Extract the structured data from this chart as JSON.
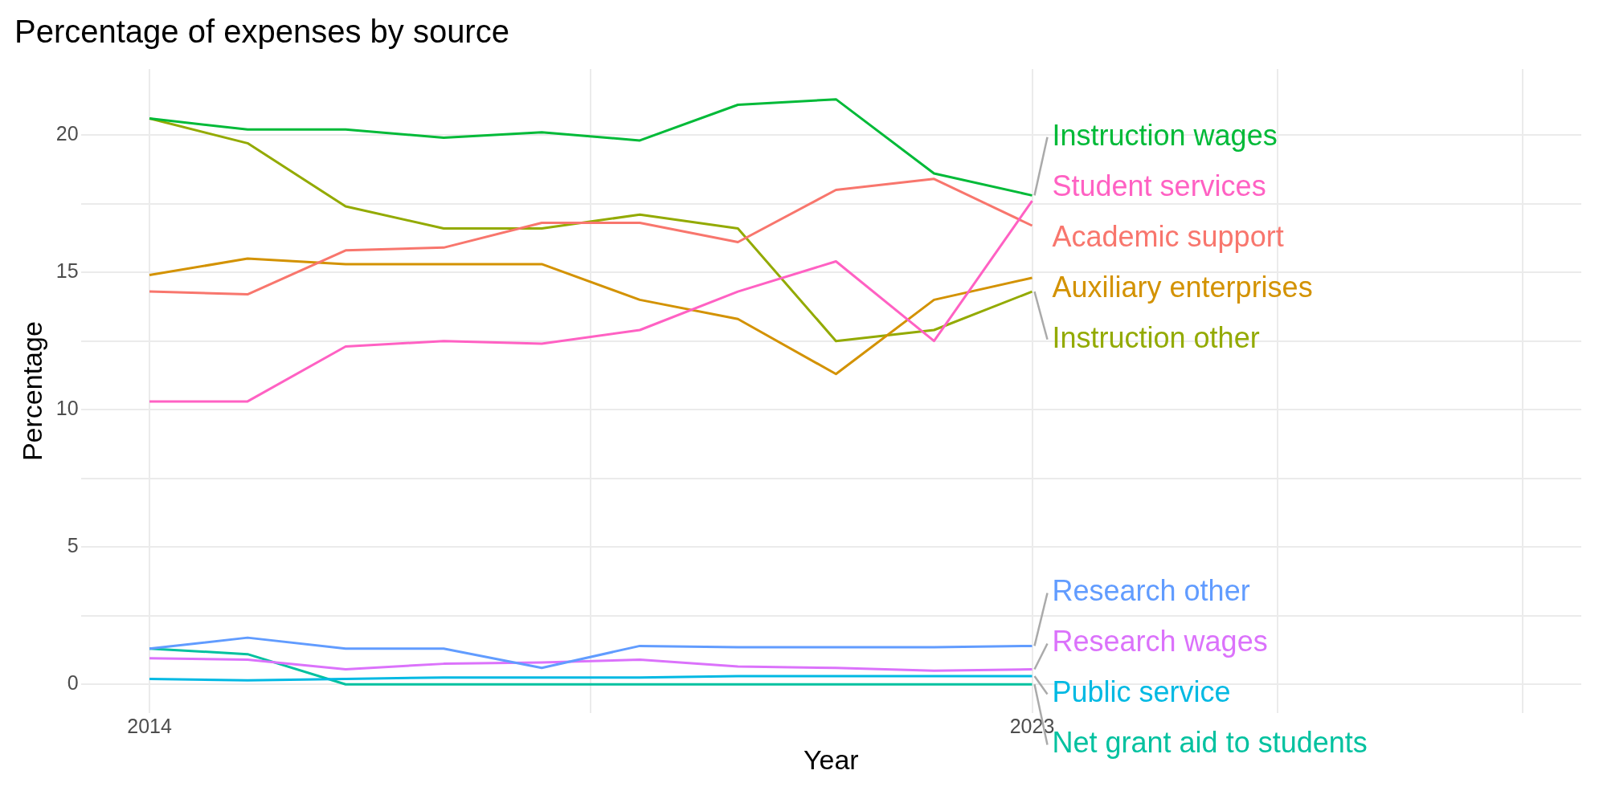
{
  "chart_data": {
    "type": "line",
    "title": "Percentage of expenses by source",
    "xlabel": "Year",
    "ylabel": "Percentage",
    "x": [
      2014,
      2015,
      2016,
      2017,
      2018,
      2019,
      2020,
      2021,
      2022,
      2023
    ],
    "xlim": [
      2013.3,
      2028.6
    ],
    "xticks": [
      2014,
      {
        "value": 2018.5,
        "label": null
      },
      2023,
      {
        "value": 2025.5,
        "label": null
      },
      {
        "value": 2028,
        "label": null
      }
    ],
    "ylim": [
      -1.05,
      22.4
    ],
    "yticks": [
      0,
      {
        "value": 2.5,
        "label": null
      },
      5,
      {
        "value": 7.5,
        "label": null
      },
      10,
      {
        "value": 12.5,
        "label": null
      },
      15,
      {
        "value": 17.5,
        "label": null
      },
      20
    ],
    "grid": true,
    "legend": false,
    "series": [
      {
        "name": "Instruction wages",
        "color": "#00ba38",
        "values": [
          20.6,
          20.2,
          20.2,
          19.9,
          20.1,
          19.8,
          21.1,
          21.3,
          18.6,
          17.8
        ]
      },
      {
        "name": "Student services",
        "color": "#ff61c3",
        "values": [
          10.3,
          10.3,
          12.3,
          12.5,
          12.4,
          12.9,
          14.3,
          15.4,
          12.5,
          17.6
        ]
      },
      {
        "name": "Academic support",
        "color": "#f8766d",
        "values": [
          14.3,
          14.2,
          15.8,
          15.9,
          16.8,
          16.8,
          16.1,
          18.0,
          18.4,
          16.7
        ]
      },
      {
        "name": "Auxiliary enterprises",
        "color": "#d39200",
        "values": [
          14.9,
          15.5,
          15.3,
          15.3,
          15.3,
          14.0,
          13.3,
          11.3,
          14.0,
          14.8
        ]
      },
      {
        "name": "Instruction other",
        "color": "#93aa00",
        "values": [
          20.6,
          19.7,
          17.4,
          16.6,
          16.6,
          17.1,
          16.6,
          12.5,
          12.9,
          14.3
        ]
      },
      {
        "name": "Research other",
        "color": "#619cff",
        "values": [
          1.3,
          1.7,
          1.3,
          1.3,
          0.6,
          1.4,
          1.35,
          1.35,
          1.35,
          1.4
        ]
      },
      {
        "name": "Research wages",
        "color": "#db72fb",
        "values": [
          0.95,
          0.9,
          0.55,
          0.75,
          0.8,
          0.9,
          0.65,
          0.6,
          0.5,
          0.55
        ]
      },
      {
        "name": "Public service",
        "color": "#00b9e3",
        "values": [
          0.2,
          0.15,
          0.2,
          0.25,
          0.25,
          0.25,
          0.3,
          0.3,
          0.3,
          0.3
        ]
      },
      {
        "name": "Net grant aid to students",
        "color": "#00c19f",
        "values": [
          1.3,
          1.1,
          0,
          0,
          0,
          0,
          0,
          0,
          0,
          0
        ]
      }
    ]
  }
}
